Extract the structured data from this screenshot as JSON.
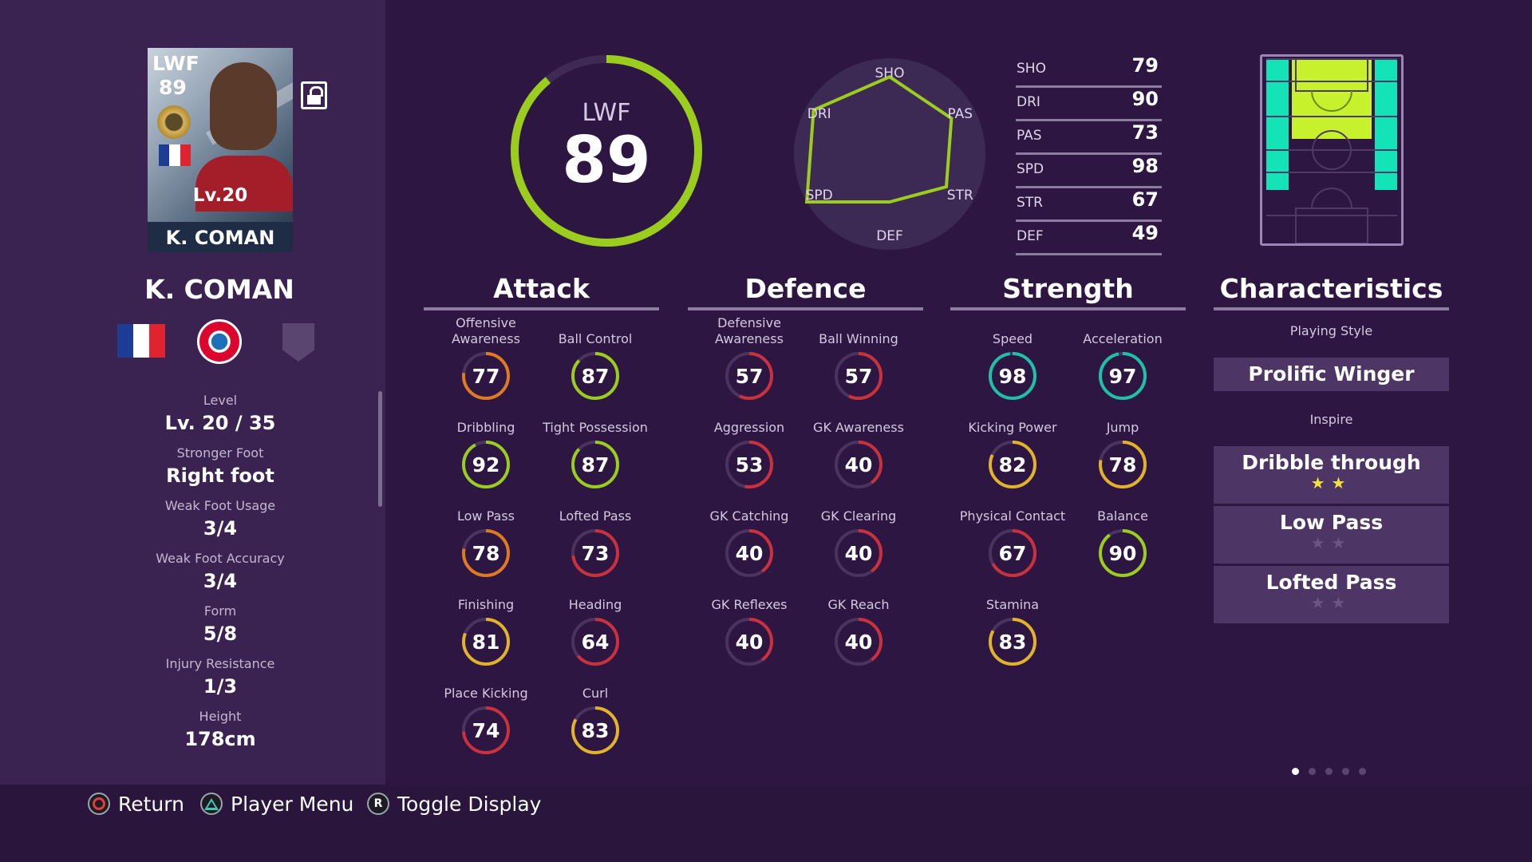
{
  "card": {
    "position": "LWF",
    "overall": "89",
    "level": "Lv.20",
    "name": "K. COMAN"
  },
  "player_name": "K. COMAN",
  "info": [
    {
      "label": "Level",
      "value": "Lv. 20 / 35"
    },
    {
      "label": "Stronger Foot",
      "value": "Right foot"
    },
    {
      "label": "Weak Foot Usage",
      "value": "3/4"
    },
    {
      "label": "Weak Foot Accuracy",
      "value": "3/4"
    },
    {
      "label": "Form",
      "value": "5/8"
    },
    {
      "label": "Injury Resistance",
      "value": "1/3"
    },
    {
      "label": "Height",
      "value": "178cm"
    }
  ],
  "overall": {
    "position": "LWF",
    "rating": "89"
  },
  "radar": {
    "axes": [
      "SHO",
      "PAS",
      "STR",
      "DEF",
      "SPD",
      "DRI"
    ],
    "values": [
      79,
      73,
      67,
      49,
      98,
      90
    ]
  },
  "summary": [
    {
      "label": "SHO",
      "value": 79
    },
    {
      "label": "DRI",
      "value": 90
    },
    {
      "label": "PAS",
      "value": 73
    },
    {
      "label": "SPD",
      "value": 98
    },
    {
      "label": "STR",
      "value": 67
    },
    {
      "label": "DEF",
      "value": 49
    }
  ],
  "sections": {
    "attack": "Attack",
    "defence": "Defence",
    "strength": "Strength",
    "characteristics": "Characteristics"
  },
  "attack": [
    {
      "label": "Offensive Awareness",
      "value": 77
    },
    {
      "label": "Ball Control",
      "value": 87
    },
    {
      "label": "Dribbling",
      "value": 92
    },
    {
      "label": "Tight Possession",
      "value": 87
    },
    {
      "label": "Low Pass",
      "value": 78
    },
    {
      "label": "Lofted Pass",
      "value": 73
    },
    {
      "label": "Finishing",
      "value": 81
    },
    {
      "label": "Heading",
      "value": 64
    },
    {
      "label": "Place Kicking",
      "value": 74
    },
    {
      "label": "Curl",
      "value": 83
    }
  ],
  "defence": [
    {
      "label": "Defensive Awareness",
      "value": 57
    },
    {
      "label": "Ball Winning",
      "value": 57
    },
    {
      "label": "Aggression",
      "value": 53
    },
    {
      "label": "GK Awareness",
      "value": 40
    },
    {
      "label": "GK Catching",
      "value": 40
    },
    {
      "label": "GK Clearing",
      "value": 40
    },
    {
      "label": "GK Reflexes",
      "value": 40
    },
    {
      "label": "GK Reach",
      "value": 40
    }
  ],
  "strength": [
    {
      "label": "Speed",
      "value": 98
    },
    {
      "label": "Acceleration",
      "value": 97
    },
    {
      "label": "Kicking Power",
      "value": 82
    },
    {
      "label": "Jump",
      "value": 78
    },
    {
      "label": "Physical Contact",
      "value": 67
    },
    {
      "label": "Balance",
      "value": 90
    },
    {
      "label": "Stamina",
      "value": 83
    }
  ],
  "characteristics": {
    "playing_style_label": "Playing Style",
    "playing_style": "Prolific Winger",
    "inspire_label": "Inspire",
    "inspire": [
      {
        "name": "Dribble through",
        "stars": 2
      },
      {
        "name": "Low Pass",
        "stars": 0
      },
      {
        "name": "Lofted Pass",
        "stars": 0
      }
    ]
  },
  "hints": {
    "return": "Return",
    "player_menu": "Player Menu",
    "toggle_display": "Toggle Display",
    "toggle_glyph": "R"
  },
  "pager": {
    "pages": 5,
    "active": 1
  },
  "colors": {
    "background": "#2d1641",
    "panel": "#3b2351",
    "ring_green": "#9acd1e",
    "ring_teal": "#1fbfa8",
    "ring_yellow": "#e2b22a",
    "ring_orange": "#e07a20",
    "ring_red": "#c9313c",
    "position_highlight": "#c6f12c",
    "position_secondary": "#14e3b8"
  }
}
